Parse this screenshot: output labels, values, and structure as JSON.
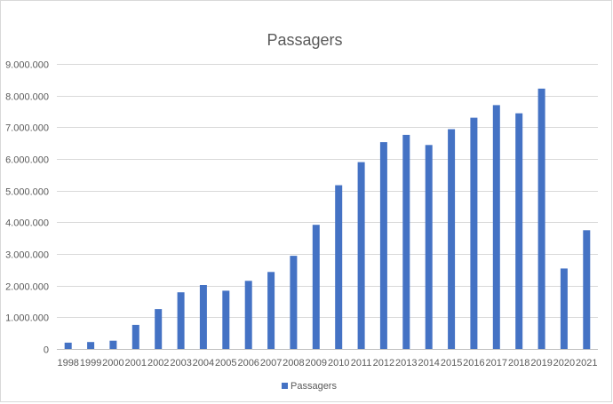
{
  "chart_data": {
    "type": "bar",
    "title": "Passagers",
    "xlabel": "",
    "ylabel": "",
    "categories": [
      "1998",
      "1999",
      "2000",
      "2001",
      "2002",
      "2003",
      "2004",
      "2005",
      "2006",
      "2007",
      "2008",
      "2009",
      "2010",
      "2011",
      "2012",
      "2013",
      "2014",
      "2015",
      "2016",
      "2017",
      "2018",
      "2019",
      "2020",
      "2021"
    ],
    "series": [
      {
        "name": "Passagers",
        "color": "#4472c4",
        "values": [
          200000,
          220000,
          260000,
          760000,
          1260000,
          1790000,
          2020000,
          1840000,
          2150000,
          2430000,
          2940000,
          3920000,
          5170000,
          5900000,
          6530000,
          6760000,
          6440000,
          6940000,
          7300000,
          7700000,
          7440000,
          8220000,
          2540000,
          3750000
        ]
      }
    ],
    "ylim": [
      0,
      9000000
    ],
    "yticks": [
      0,
      1000000,
      2000000,
      3000000,
      4000000,
      5000000,
      6000000,
      7000000,
      8000000,
      9000000
    ],
    "ytick_labels": [
      "0",
      "1.000.000",
      "2.000.000",
      "3.000.000",
      "4.000.000",
      "5.000.000",
      "6.000.000",
      "7.000.000",
      "8.000.000",
      "9.000.000"
    ],
    "grid": true,
    "legend": "bottom"
  }
}
